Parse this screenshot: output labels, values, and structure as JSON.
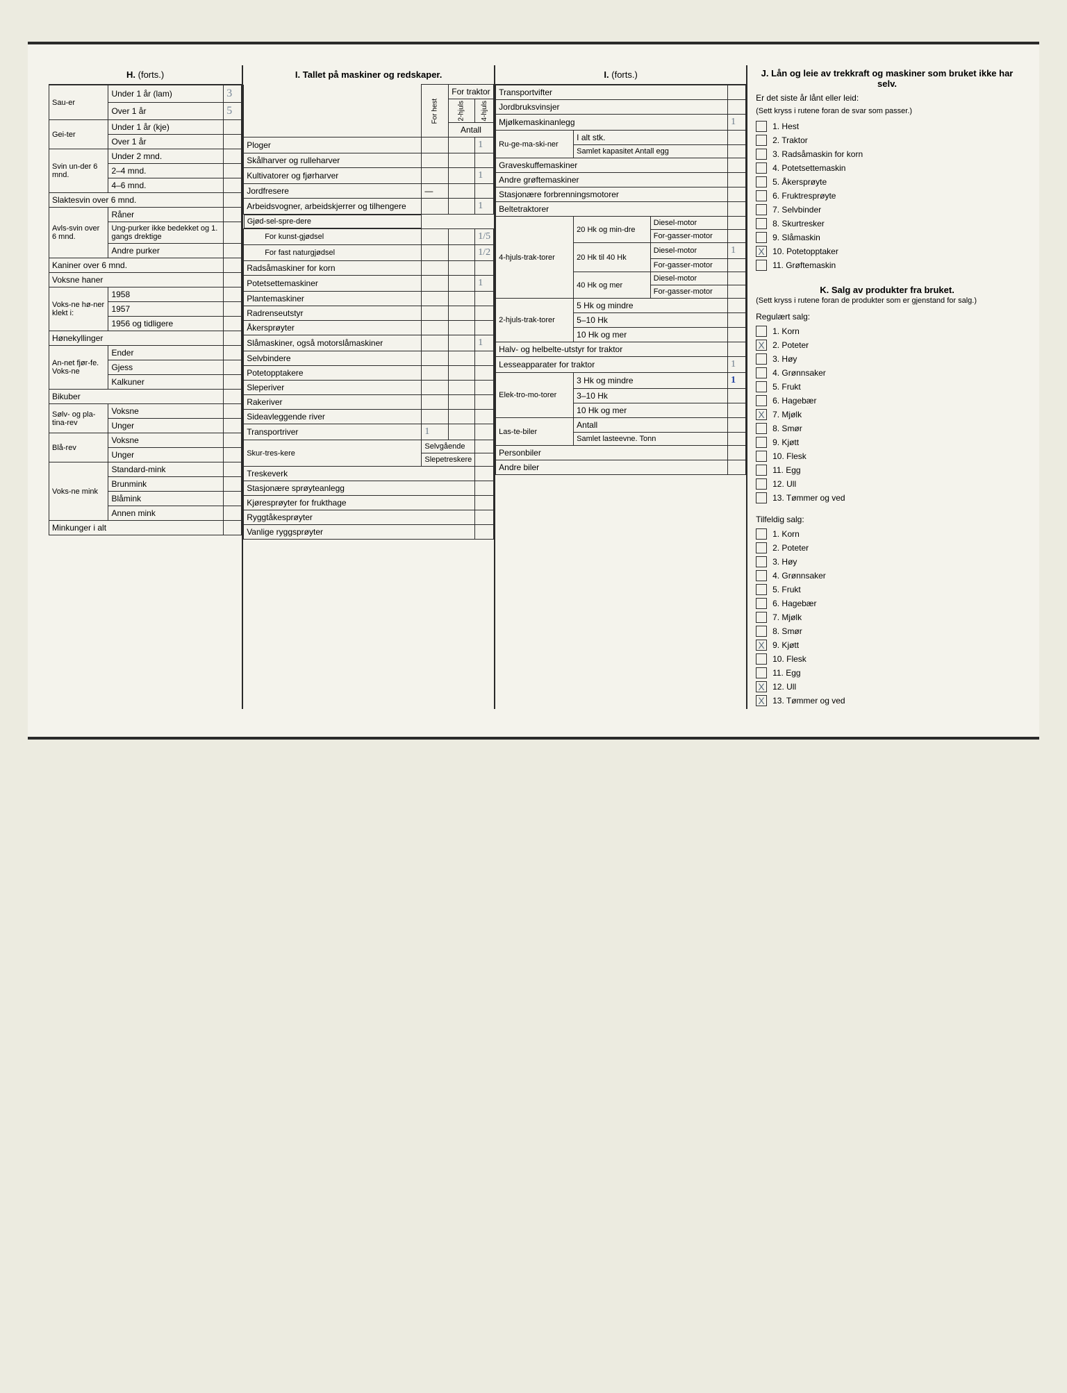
{
  "headers": {
    "h": "H.",
    "h_cont": "(forts.)",
    "i_title": "I. Tallet på maskiner og redskaper.",
    "i_cont": "I.",
    "i_cont2": "(forts.)",
    "j_title": "J. Lån og leie av trekkraft og maskiner som bruket ikke har selv.",
    "j_q": "Er det siste år lånt eller leid:",
    "j_hint": "(Sett kryss i rutene foran de svar som passer.)",
    "k_title": "K. Salg av produkter fra bruket.",
    "k_hint": "(Sett kryss i rutene foran de produkter som er gjenstand for salg.)",
    "k_reg": "Regulært salg:",
    "k_tilf": "Tilfeldig salg:"
  },
  "colH": {
    "sauer": "Sau-er",
    "sauer_u1": "Under 1 år (lam)",
    "sauer_o1": "Over 1 år",
    "sauer_u1_val": "3",
    "sauer_o1_val": "5",
    "geiter": "Gei-ter",
    "geiter_u1": "Under 1 år (kje)",
    "geiter_o1": "Over 1 år",
    "svin": "Svin un-der 6 mnd.",
    "svin_u2": "Under 2 mnd.",
    "svin_24": "2–4 mnd.",
    "svin_46": "4–6 mnd.",
    "slaktesvin": "Slaktesvin over 6 mnd.",
    "avlssvin": "Avls-svin over 6 mnd.",
    "raner": "Råner",
    "ungpurker": "Ung-purker ikke bedekket og 1. gangs drektige",
    "andrepurker": "Andre purker",
    "kaniner": "Kaniner over 6 mnd.",
    "voksnehaner": "Voksne haner",
    "voksnehoner": "Voks-ne hø-ner klekt i:",
    "y1958": "1958",
    "y1957": "1957",
    "y1956": "1956 og tidligere",
    "honekyllinger": "Hønekyllinger",
    "annetfjorfe": "An-net fjør-fe. Voks-ne",
    "ender": "Ender",
    "gjess": "Gjess",
    "kalkuner": "Kalkuner",
    "bikuber": "Bikuber",
    "solvrev": "Sølv- og pla-tina-rev",
    "voksne": "Voksne",
    "unger": "Unger",
    "blarev": "Blå-rev",
    "voksnemink": "Voks-ne mink",
    "standardmink": "Standard-mink",
    "brunmink": "Brunmink",
    "blamink": "Blåmink",
    "annenmink": "Annen mink",
    "minkunger": "Minkunger i alt"
  },
  "colI": {
    "for_hest": "For hest",
    "for_traktor": "For traktor",
    "h2": "2-hjuls",
    "h4": "4-hjuls",
    "antall": "Antall",
    "rows": {
      "ploger": "Ploger",
      "skalharver": "Skålharver og rulleharver",
      "kultivatorer": "Kultivatorer og fjørharver",
      "jordfresere": "Jordfresere",
      "arbeidsvogner": "Arbeidsvogner, arbeidskjerrer og tilhengere",
      "gjodsel": "Gjød-sel-spre-dere",
      "kunstgjodsel": "For kunst-gjødsel",
      "fastgjodsel": "For fast naturgjødsel",
      "radsamaskiner": "Radsåmaskiner for korn",
      "potetsettemaskiner": "Potetsettemaskiner",
      "plantemaskiner": "Plantemaskiner",
      "radrenseutstyr": "Radrenseutstyr",
      "akersproyter": "Åkersprøyter",
      "slamaskiner": "Slåmaskiner, også motorslåmaskiner",
      "selvbindere": "Selvbindere",
      "potetopptakere": "Potetopptakere",
      "sleperiver": "Sleperiver",
      "rakeriver": "Rakeriver",
      "sideavleggende": "Sideavleggende river",
      "transportriver": "Transportriver",
      "skurtreskere": "Skur-tres-kere",
      "selvgaende": "Selvgående",
      "slepetreskere": "Slepetreskere",
      "treskeverk": "Treskeverk",
      "stasjonaere": "Stasjonære sprøyteanlegg",
      "kjoresproyter": "Kjøresprøyter for frukthage",
      "ryggtakesproyter": "Ryggtåkesprøyter",
      "vanlige": "Vanlige ryggsprøyter"
    },
    "marks": {
      "ploger": "1",
      "kultivatorer": "1",
      "arbeidsvogner": "1",
      "kunstgjodsel": "1/5",
      "fastgjodsel": "1/2",
      "potetsettemaskiner": "1",
      "slamaskiner": "1",
      "transportriver": "1"
    }
  },
  "colI2": {
    "transportvifter": "Transportvifter",
    "jordbruksvinsjer": "Jordbruksvinsjer",
    "mjolke": "Mjølkemaskinanlegg",
    "mjolke_mark": "1",
    "rugemaskiner": "Ru-ge-ma-ski-ner",
    "ialt": "I alt stk.",
    "samlet": "Samlet kapasitet Antall egg",
    "graveskuffe": "Graveskuffemaskiner",
    "andregrofter": "Andre grøftemaskiner",
    "stasjonforbr": "Stasjonære forbrenningsmotorer",
    "beltetraktorer": "Beltetraktorer",
    "hk20min": "20 Hk og min-dre",
    "hk4": "4-hjuls-trak-torer",
    "hk20_40": "20 Hk til 40 Hk",
    "hk40mer": "40 Hk og mer",
    "diesel": "Diesel-motor",
    "forgasser": "For-gasser-motor",
    "hk2": "2-hjuls-trak-torer",
    "hk5m": "5 Hk og mindre",
    "hk510": "5–10 Hk",
    "hk10m": "10 Hk og mer",
    "halvbelte": "Halv- og helbelte-utstyr for traktor",
    "lesseapp": "Lesseapparater for traktor",
    "lesseapp_mark": "1",
    "elektromotorer": "Elek-tro-mo-torer",
    "hk3m": "3 Hk og mindre",
    "hk3m_mark": "1",
    "hk310": "3–10 Hk",
    "hk10mer": "10 Hk og mer",
    "lastebiler": "Las-te-biler",
    "antall": "Antall",
    "samletlast": "Samlet lasteevne. Tonn",
    "personbiler": "Personbiler",
    "andrebiler": "Andre biler",
    "diesel_mark": "1"
  },
  "sectionJ": [
    {
      "n": "1.",
      "l": "Hest",
      "x": ""
    },
    {
      "n": "2.",
      "l": "Traktor",
      "x": ""
    },
    {
      "n": "3.",
      "l": "Radsåmaskin for korn",
      "x": ""
    },
    {
      "n": "4.",
      "l": "Potetsettemaskin",
      "x": ""
    },
    {
      "n": "5.",
      "l": "Åkersprøyte",
      "x": ""
    },
    {
      "n": "6.",
      "l": "Fruktresprøyte",
      "x": ""
    },
    {
      "n": "7.",
      "l": "Selvbinder",
      "x": ""
    },
    {
      "n": "8.",
      "l": "Skurtresker",
      "x": ""
    },
    {
      "n": "9.",
      "l": "Slåmaskin",
      "x": ""
    },
    {
      "n": "10.",
      "l": "Potetopptaker",
      "x": "X"
    },
    {
      "n": "11.",
      "l": "Grøftemaskin",
      "x": ""
    }
  ],
  "sectionK_reg": [
    {
      "n": "1.",
      "l": "Korn",
      "x": ""
    },
    {
      "n": "2.",
      "l": "Poteter",
      "x": "X"
    },
    {
      "n": "3.",
      "l": "Høy",
      "x": ""
    },
    {
      "n": "4.",
      "l": "Grønnsaker",
      "x": ""
    },
    {
      "n": "5.",
      "l": "Frukt",
      "x": ""
    },
    {
      "n": "6.",
      "l": "Hagebær",
      "x": ""
    },
    {
      "n": "7.",
      "l": "Mjølk",
      "x": "X"
    },
    {
      "n": "8.",
      "l": "Smør",
      "x": ""
    },
    {
      "n": "9.",
      "l": "Kjøtt",
      "x": ""
    },
    {
      "n": "10.",
      "l": "Flesk",
      "x": ""
    },
    {
      "n": "11.",
      "l": "Egg",
      "x": ""
    },
    {
      "n": "12.",
      "l": "Ull",
      "x": ""
    },
    {
      "n": "13.",
      "l": "Tømmer og ved",
      "x": ""
    }
  ],
  "sectionK_tilf": [
    {
      "n": "1.",
      "l": "Korn",
      "x": ""
    },
    {
      "n": "2.",
      "l": "Poteter",
      "x": ""
    },
    {
      "n": "3.",
      "l": "Høy",
      "x": ""
    },
    {
      "n": "4.",
      "l": "Grønnsaker",
      "x": ""
    },
    {
      "n": "5.",
      "l": "Frukt",
      "x": ""
    },
    {
      "n": "6.",
      "l": "Hagebær",
      "x": ""
    },
    {
      "n": "7.",
      "l": "Mjølk",
      "x": ""
    },
    {
      "n": "8.",
      "l": "Smør",
      "x": ""
    },
    {
      "n": "9.",
      "l": "Kjøtt",
      "x": "X"
    },
    {
      "n": "10.",
      "l": "Flesk",
      "x": ""
    },
    {
      "n": "11.",
      "l": "Egg",
      "x": ""
    },
    {
      "n": "12.",
      "l": "Ull",
      "x": "X"
    },
    {
      "n": "13.",
      "l": "Tømmer og ved",
      "x": "X"
    }
  ]
}
